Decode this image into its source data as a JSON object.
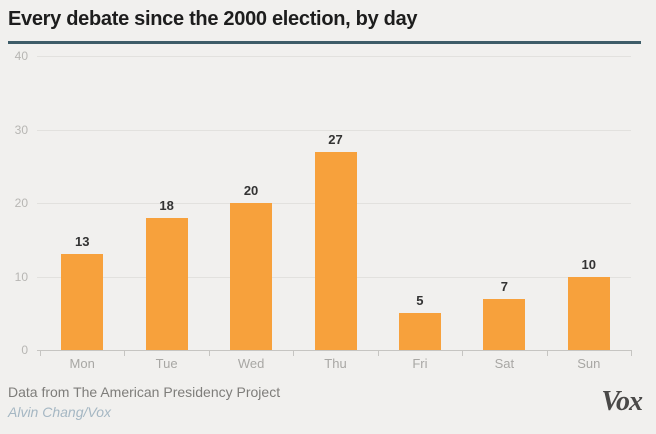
{
  "header": {
    "title": "Every debate since the 2000 election, by day"
  },
  "chart_data": {
    "type": "bar",
    "title": "Every debate since the 2000 election, by day",
    "categories": [
      "Mon",
      "Tue",
      "Wed",
      "Thu",
      "Fri",
      "Sat",
      "Sun"
    ],
    "values": [
      13,
      18,
      20,
      27,
      5,
      7,
      10
    ],
    "xlabel": "",
    "ylabel": "",
    "ylim": [
      0,
      40
    ],
    "yticks": [
      0,
      10,
      20,
      30,
      40
    ],
    "grid": true,
    "legend": "none",
    "bar_color": "#f7a13c"
  },
  "footer": {
    "source": "Data from The American Presidency Project",
    "credit": "Alvin Chang/Vox",
    "logo_text": "Vox"
  },
  "colors": {
    "background": "#f1f0ee",
    "bar": "#f7a13c",
    "title_text": "#1d1d1d",
    "title_rule": "#3e5c68",
    "gridline": "#e2e1de",
    "axis_line": "#c6c5c2",
    "tick_label": "#b7b6b3",
    "day_label": "#a8a7a4",
    "value_label": "#333333",
    "source_text": "#7e7d7a",
    "credit_text": "#a5b7c3",
    "logo_text": "#4a4948"
  }
}
